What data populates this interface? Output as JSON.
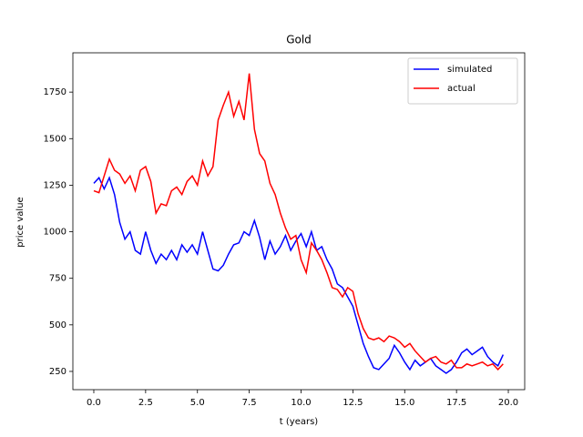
{
  "chart_data": {
    "type": "line",
    "title": "Gold",
    "x_label": "t (years)",
    "y_label": "price value",
    "x": [
      0,
      0.25,
      0.5,
      0.75,
      1,
      1.25,
      1.5,
      1.75,
      2,
      2.25,
      2.5,
      2.75,
      3,
      3.25,
      3.5,
      3.75,
      4,
      4.25,
      4.5,
      4.75,
      5,
      5.25,
      5.5,
      5.75,
      6,
      6.25,
      6.5,
      6.75,
      7,
      7.25,
      7.5,
      7.75,
      8,
      8.25,
      8.5,
      8.75,
      9,
      9.25,
      9.5,
      9.75,
      10,
      10.25,
      10.5,
      10.75,
      11,
      11.25,
      11.5,
      11.75,
      12,
      12.25,
      12.5,
      12.75,
      13,
      13.25,
      13.5,
      13.75,
      14,
      14.25,
      14.5,
      14.75,
      15,
      15.25,
      15.5,
      15.75,
      16,
      16.25,
      16.5,
      16.75,
      17,
      17.25,
      17.5,
      17.75,
      18,
      18.25,
      18.5,
      18.75,
      19,
      19.25,
      19.5,
      19.75
    ],
    "series": [
      {
        "name": "simulated",
        "color": "#0000ff",
        "values": [
          1260,
          1290,
          1230,
          1290,
          1200,
          1050,
          960,
          1000,
          900,
          880,
          1000,
          900,
          830,
          880,
          850,
          900,
          850,
          930,
          890,
          930,
          880,
          1000,
          900,
          800,
          790,
          820,
          880,
          930,
          940,
          1000,
          980,
          1060,
          970,
          850,
          950,
          880,
          920,
          980,
          900,
          950,
          990,
          920,
          1000,
          900,
          920,
          850,
          800,
          720,
          700,
          650,
          600,
          500,
          400,
          330,
          270,
          260,
          290,
          320,
          390,
          350,
          300,
          260,
          310,
          280,
          300,
          320,
          280,
          260,
          240,
          260,
          300,
          350,
          370,
          340,
          360,
          380,
          330,
          300,
          280,
          340
        ]
      },
      {
        "name": "actual",
        "color": "#ff0000",
        "values": [
          1220,
          1210,
          1300,
          1390,
          1330,
          1310,
          1260,
          1300,
          1220,
          1330,
          1350,
          1270,
          1100,
          1150,
          1140,
          1220,
          1240,
          1200,
          1270,
          1300,
          1250,
          1380,
          1300,
          1350,
          1600,
          1680,
          1750,
          1620,
          1700,
          1600,
          1850,
          1550,
          1420,
          1380,
          1260,
          1200,
          1100,
          1020,
          960,
          980,
          850,
          780,
          940,
          900,
          850,
          780,
          700,
          690,
          650,
          700,
          680,
          560,
          480,
          430,
          420,
          430,
          410,
          440,
          430,
          410,
          380,
          400,
          360,
          330,
          300,
          320,
          330,
          300,
          290,
          310,
          270,
          270,
          290,
          280,
          290,
          300,
          280,
          290,
          260,
          290
        ]
      }
    ],
    "xlim": [
      -1.01,
      20.79
    ],
    "ylim": [
      152,
      1961
    ],
    "xticks": [
      {
        "value": 0,
        "label": "0.0"
      },
      2.5,
      {
        "value": 5,
        "label": "5.0"
      },
      7.5,
      {
        "value": 10,
        "label": "10.0"
      },
      12.5,
      {
        "value": 15,
        "label": "15.0"
      },
      17.5,
      {
        "value": 20,
        "label": "20.0"
      }
    ],
    "yticks": [
      250,
      500,
      750,
      1000,
      1250,
      1500,
      1750
    ],
    "legend": "upper right"
  }
}
